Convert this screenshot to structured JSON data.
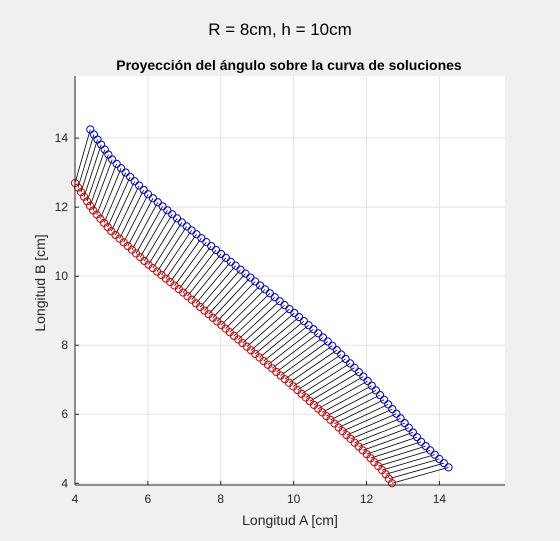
{
  "figure": {
    "suptitle": "R = 8cm, h = 10cm",
    "background": "#f0f0f0"
  },
  "chart_data": {
    "type": "scatter",
    "title": "Proyección del ángulo sobre la curva de soluciones",
    "xlabel": "Longitud A [cm]",
    "ylabel": "Longitud B [cm]",
    "xlim": [
      4,
      15.8
    ],
    "ylim": [
      3.95,
      15.8
    ],
    "xticks": [
      4,
      6,
      8,
      10,
      12,
      14
    ],
    "yticks": [
      4,
      6,
      8,
      10,
      12,
      14
    ],
    "xtick_labels": [
      "4",
      "6",
      "8",
      "10",
      "12",
      "14"
    ],
    "ytick_labels": [
      "4",
      "6",
      "8",
      "10",
      "12",
      "14"
    ],
    "grid": true,
    "marker": "circle-open",
    "series": [
      {
        "color": "#0000cc",
        "points": [
          [
            4.42,
            14.25
          ],
          [
            5.0,
            13.4
          ],
          [
            6.0,
            12.38
          ],
          [
            7.0,
            11.5
          ],
          [
            8.0,
            10.65
          ],
          [
            9.0,
            9.8
          ],
          [
            10.0,
            8.95
          ],
          [
            11.0,
            8.05
          ],
          [
            12.0,
            7.0
          ],
          [
            13.0,
            5.8
          ],
          [
            13.5,
            5.2
          ],
          [
            14.0,
            4.7
          ],
          [
            14.25,
            4.46
          ]
        ]
      },
      {
        "color": "#cc0000",
        "points": [
          [
            4.0,
            12.7
          ],
          [
            4.5,
            11.9
          ],
          [
            5.0,
            11.3
          ],
          [
            6.0,
            10.35
          ],
          [
            7.0,
            9.5
          ],
          [
            8.0,
            8.6
          ],
          [
            9.0,
            7.7
          ],
          [
            10.0,
            6.8
          ],
          [
            11.0,
            5.85
          ],
          [
            12.0,
            4.85
          ],
          [
            12.5,
            4.3
          ],
          [
            12.7,
            4.0
          ]
        ]
      },
      {
        "color": "#000000",
        "points": []
      }
    ],
    "point_count": 80
  }
}
